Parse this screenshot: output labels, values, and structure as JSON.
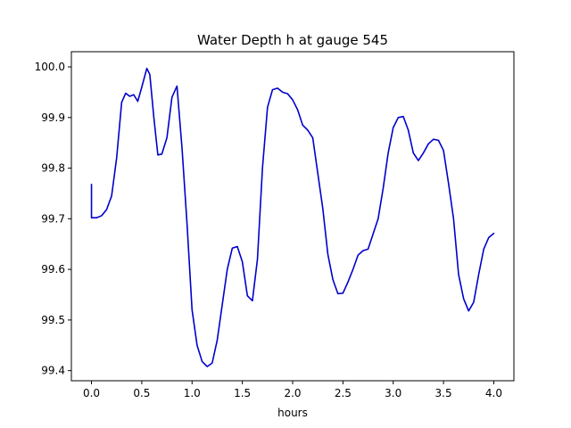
{
  "chart_data": {
    "type": "line",
    "title": "Water Depth h at gauge 545",
    "xlabel": "hours",
    "ylabel": "",
    "xlim": [
      -0.2,
      4.2
    ],
    "ylim": [
      99.38,
      100.03
    ],
    "xticks": [
      0.0,
      0.5,
      1.0,
      1.5,
      2.0,
      2.5,
      3.0,
      3.5,
      4.0
    ],
    "xtick_labels": [
      "0.0",
      "0.5",
      "1.0",
      "1.5",
      "2.0",
      "2.5",
      "3.0",
      "3.5",
      "4.0"
    ],
    "yticks": [
      99.4,
      99.5,
      99.6,
      99.7,
      99.8,
      99.9,
      100.0
    ],
    "ytick_labels": [
      "99.4",
      "99.5",
      "99.6",
      "99.7",
      "99.8",
      "99.9",
      "100.0"
    ],
    "grid": false,
    "series": [
      {
        "color": "#0000cc",
        "x": [
          0.0,
          0.0,
          0.05,
          0.1,
          0.15,
          0.2,
          0.25,
          0.3,
          0.34,
          0.38,
          0.42,
          0.46,
          0.5,
          0.55,
          0.58,
          0.62,
          0.66,
          0.7,
          0.75,
          0.8,
          0.85,
          0.9,
          0.95,
          1.0,
          1.05,
          1.1,
          1.15,
          1.2,
          1.25,
          1.3,
          1.35,
          1.4,
          1.45,
          1.5,
          1.55,
          1.6,
          1.65,
          1.7,
          1.75,
          1.8,
          1.85,
          1.9,
          1.95,
          2.0,
          2.05,
          2.1,
          2.15,
          2.2,
          2.25,
          2.3,
          2.35,
          2.4,
          2.45,
          2.5,
          2.55,
          2.6,
          2.65,
          2.7,
          2.75,
          2.8,
          2.85,
          2.9,
          2.95,
          3.0,
          3.05,
          3.1,
          3.15,
          3.2,
          3.25,
          3.3,
          3.35,
          3.4,
          3.45,
          3.5,
          3.55,
          3.6,
          3.65,
          3.7,
          3.75,
          3.8,
          3.85,
          3.9,
          3.95,
          4.0
        ],
        "y": [
          99.768,
          99.702,
          99.702,
          99.706,
          99.718,
          99.745,
          99.82,
          99.93,
          99.948,
          99.942,
          99.945,
          99.932,
          99.96,
          99.997,
          99.985,
          99.9,
          99.826,
          99.828,
          99.86,
          99.94,
          99.962,
          99.84,
          99.69,
          99.52,
          99.45,
          99.418,
          99.408,
          99.415,
          99.46,
          99.53,
          99.6,
          99.642,
          99.645,
          99.615,
          99.548,
          99.538,
          99.62,
          99.8,
          99.92,
          99.955,
          99.958,
          99.95,
          99.947,
          99.935,
          99.915,
          99.885,
          99.875,
          99.86,
          99.79,
          99.72,
          99.63,
          99.58,
          99.552,
          99.553,
          99.575,
          99.6,
          99.628,
          99.637,
          99.64,
          99.67,
          99.7,
          99.76,
          99.83,
          99.88,
          99.9,
          99.902,
          99.875,
          99.83,
          99.815,
          99.83,
          99.848,
          99.857,
          99.855,
          99.835,
          99.77,
          99.7,
          99.59,
          99.542,
          99.518,
          99.535,
          99.59,
          99.64,
          99.663,
          99.671
        ]
      }
    ]
  }
}
